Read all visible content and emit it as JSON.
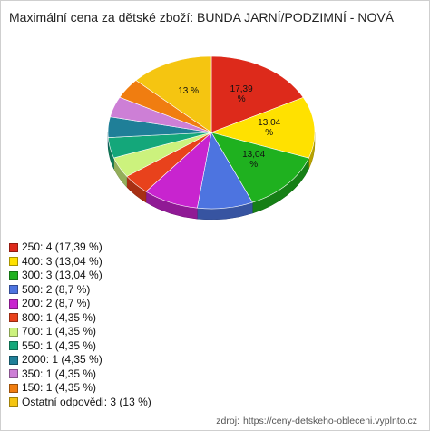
{
  "title": "Maximální cena za dětské zboží: BUNDA JARNÍ/PODZIMNÍ - NOVÁ",
  "chart_data": {
    "type": "pie",
    "title": "Maximální cena za dětské zboží: BUNDA JARNÍ/PODZIMNÍ - NOVÁ",
    "slices": [
      {
        "label": "250: 4 (17,39 %)",
        "value": 17.39,
        "color": "#dd2a1b",
        "pie_label": [
          "17,39",
          "%"
        ]
      },
      {
        "label": "400: 3 (13,04 %)",
        "value": 13.04,
        "color": "#ffe100",
        "pie_label": [
          "13,04",
          "%"
        ]
      },
      {
        "label": "300: 3 (13,04 %)",
        "value": 13.04,
        "color": "#1fb11f",
        "pie_label": [
          "13,04",
          "%"
        ]
      },
      {
        "label": "500: 2 (8,7 %)",
        "value": 8.7,
        "color": "#4d74e0",
        "pie_label": []
      },
      {
        "label": "200: 2 (8,7 %)",
        "value": 8.7,
        "color": "#c824cf",
        "pie_label": []
      },
      {
        "label": "800: 1 (4,35 %)",
        "value": 4.35,
        "color": "#e8421c",
        "pie_label": []
      },
      {
        "label": "700: 1 (4,35 %)",
        "value": 4.35,
        "color": "#ccf27d",
        "pie_label": []
      },
      {
        "label": "550: 1 (4,35 %)",
        "value": 4.35,
        "color": "#14a77a",
        "pie_label": []
      },
      {
        "label": "2000: 1 (4,35 %)",
        "value": 4.35,
        "color": "#1f7f98",
        "pie_label": []
      },
      {
        "label": "350: 1 (4,35 %)",
        "value": 4.35,
        "color": "#cd7fd6",
        "pie_label": []
      },
      {
        "label": "150: 1 (4,35 %)",
        "value": 4.35,
        "color": "#f07d10",
        "pie_label": []
      },
      {
        "label": "Ostatní odpovědi: 3 (13 %)",
        "value": 13.0,
        "color": "#f5c511",
        "pie_label": [
          "13 %"
        ]
      }
    ]
  },
  "source": {
    "prefix": "zdroj:",
    "url": "https://ceny-detskeho-obleceni.vyplnto.cz"
  }
}
